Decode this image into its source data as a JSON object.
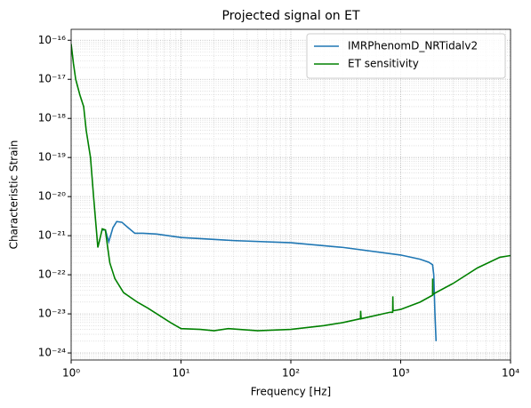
{
  "chart_data": {
    "type": "line",
    "title": "Projected signal on ET",
    "xlabel": "Frequency [Hz]",
    "ylabel": "Characteristic Strain",
    "xscale": "log",
    "yscale": "log",
    "grid": true,
    "legend": "upper right",
    "xlim": [
      1,
      10000
    ],
    "xticks": [
      {
        "value": 1,
        "label": "10⁰"
      },
      {
        "value": 10,
        "label": "10¹"
      },
      {
        "value": 100,
        "label": "10²"
      },
      {
        "value": 1000,
        "label": "10³"
      },
      {
        "value": 10000,
        "label": "10⁴"
      }
    ],
    "ylim": [
      6.6e-25,
      1.9e-16
    ],
    "yticks": [
      {
        "value": 1e-24,
        "label": "10⁻²⁴"
      },
      {
        "value": 1e-23,
        "label": "10⁻²³"
      },
      {
        "value": 1e-22,
        "label": "10⁻²²"
      },
      {
        "value": 1e-21,
        "label": "10⁻²¹"
      },
      {
        "value": 1e-20,
        "label": "10⁻²⁰"
      },
      {
        "value": 1e-19,
        "label": "10⁻¹⁹"
      },
      {
        "value": 1e-18,
        "label": "10⁻¹⁸"
      },
      {
        "value": 1e-17,
        "label": "10⁻¹⁷"
      },
      {
        "value": 1e-16,
        "label": "10⁻¹⁶"
      }
    ],
    "series": [
      {
        "name": "IMRPhenomD_NRTidalv2",
        "color": "#1f77b4",
        "x": [
          1.9,
          2.05,
          2.2,
          2.4,
          2.6,
          2.9,
          3.3,
          3.8,
          4.5,
          6,
          10,
          30,
          100,
          300,
          1000,
          1500,
          1800,
          1950,
          2000,
          2050,
          2100
        ],
        "values": [
          1.4e-21,
          1.4e-21,
          7e-22,
          1.6e-21,
          2.3e-21,
          2.2e-21,
          1.6e-21,
          1.15e-21,
          1.15e-21,
          1.1e-21,
          9e-22,
          7.5e-22,
          6.6e-22,
          5e-22,
          3.2e-22,
          2.5e-22,
          2.1e-22,
          1.8e-22,
          1e-22,
          1e-23,
          2e-24
        ]
      },
      {
        "name": "ET sensitivity",
        "color": "#008000",
        "x": [
          1,
          1.05,
          1.1,
          1.2,
          1.3,
          1.37,
          1.5,
          1.6,
          1.75,
          1.92,
          2.05,
          2.15,
          2.25,
          2.5,
          3,
          4,
          5,
          8,
          10,
          15,
          20,
          27,
          50,
          100,
          200,
          300,
          430,
          432,
          436,
          800,
          845,
          848,
          852,
          1000,
          1500,
          1950,
          1955,
          1962,
          1970,
          3000,
          5000,
          8000,
          10000
        ],
        "values": [
          8e-17,
          2.5e-17,
          1e-17,
          4e-18,
          2e-18,
          5e-19,
          1e-19,
          1e-20,
          5e-22,
          1.5e-21,
          1.4e-21,
          5e-22,
          2e-22,
          8e-23,
          3.5e-23,
          2e-23,
          1.4e-23,
          6e-24,
          4.2e-24,
          4e-24,
          3.7e-24,
          4.2e-24,
          3.7e-24,
          4e-24,
          5e-24,
          6e-24,
          7.5e-24,
          1.2e-23,
          7.5e-24,
          1.1e-23,
          1.1e-23,
          2.8e-23,
          1.2e-23,
          1.3e-23,
          2e-23,
          3e-23,
          8e-23,
          3e-23,
          3.2e-23,
          6e-23,
          1.5e-22,
          2.8e-22,
          3.1e-22
        ]
      }
    ]
  }
}
